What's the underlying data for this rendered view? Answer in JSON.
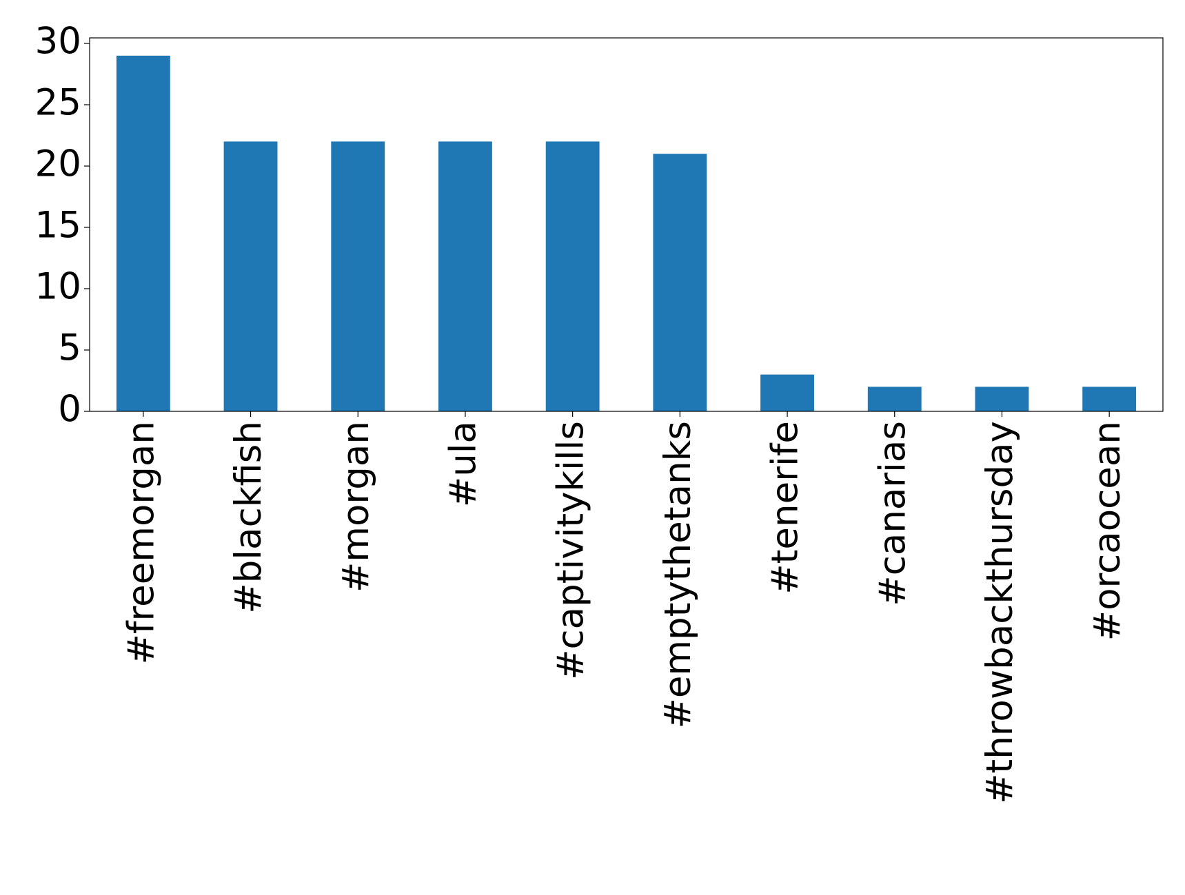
{
  "chart_data": {
    "type": "bar",
    "categories": [
      "#freemorgan",
      "#blackfish",
      "#morgan",
      "#ula",
      "#captivitykills",
      "#emptythetanks",
      "#tenerife",
      "#canarias",
      "#throwbackthursday",
      "#orcaocean"
    ],
    "values": [
      29,
      22,
      22,
      22,
      22,
      21,
      3,
      2,
      2,
      2
    ],
    "color": "#1f77b4",
    "ylim": [
      0,
      30.45
    ],
    "yticks": [
      0,
      5,
      10,
      15,
      20,
      25,
      30
    ],
    "grid": false
  }
}
